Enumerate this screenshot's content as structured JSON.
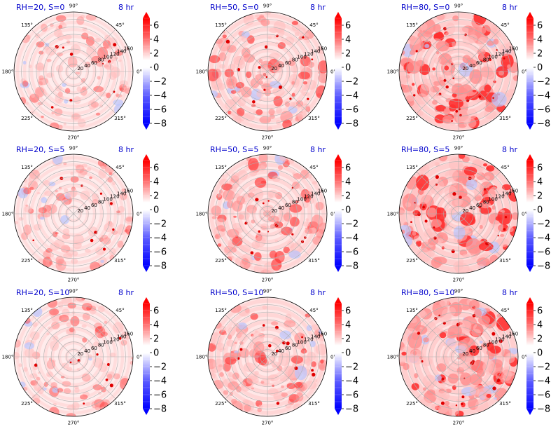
{
  "chart_data": {
    "type": "polar contour grid",
    "time_label": "8 hr",
    "angle_ticks": [
      "0°",
      "45°",
      "90°",
      "135°",
      "180°",
      "225°",
      "270°",
      "315°"
    ],
    "radial_ticks": [
      20,
      40,
      60,
      80,
      100,
      120,
      140,
      160
    ],
    "r_max": 160,
    "colorbar": {
      "ticks": [
        6,
        4,
        2,
        0,
        -2,
        -4,
        -6,
        -8
      ],
      "tick_labels": [
        "6",
        "4",
        "2",
        "0",
        "−2",
        "−4",
        "−6",
        "−8"
      ],
      "range": [
        -8,
        7
      ],
      "cmap": "bwr",
      "extend": "both"
    },
    "panels": [
      {
        "title": "RH=20, S=0",
        "intensity": 0.35
      },
      {
        "title": "RH=50, S=0",
        "intensity": 0.6
      },
      {
        "title": "RH=80, S=0",
        "intensity": 1.0
      },
      {
        "title": "RH=20, S=5",
        "intensity": 0.35
      },
      {
        "title": "RH=50, S=5",
        "intensity": 0.6
      },
      {
        "title": "RH=80, S=5",
        "intensity": 1.0
      },
      {
        "title": "RH=20, S=10",
        "intensity": 0.35
      },
      {
        "title": "RH=50, S=10",
        "intensity": 0.6
      },
      {
        "title": "RH=80, S=10",
        "intensity": 1.0
      }
    ]
  },
  "colors": {
    "title": "#0000cc",
    "max_red": "#ff0000",
    "max_blue": "#0000ff",
    "light_red": "#fdd5d5",
    "light_blue": "#cdd7ff"
  }
}
